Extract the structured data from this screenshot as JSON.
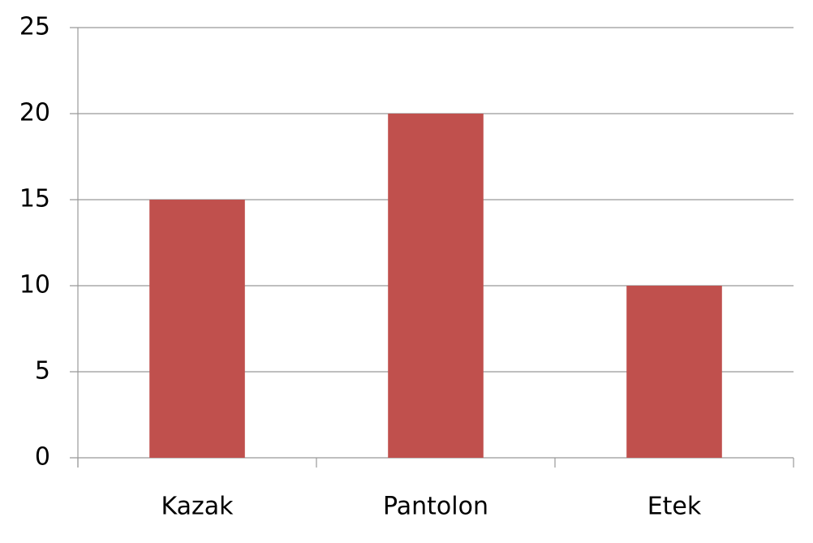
{
  "chart_data": {
    "type": "bar",
    "categories": [
      "Kazak",
      "Pantolon",
      "Etek"
    ],
    "values": [
      15,
      20,
      10
    ],
    "color": "#c0504d",
    "ylim": [
      0,
      25
    ],
    "yticks": [
      0,
      5,
      10,
      15,
      20,
      25
    ],
    "grid": true
  }
}
